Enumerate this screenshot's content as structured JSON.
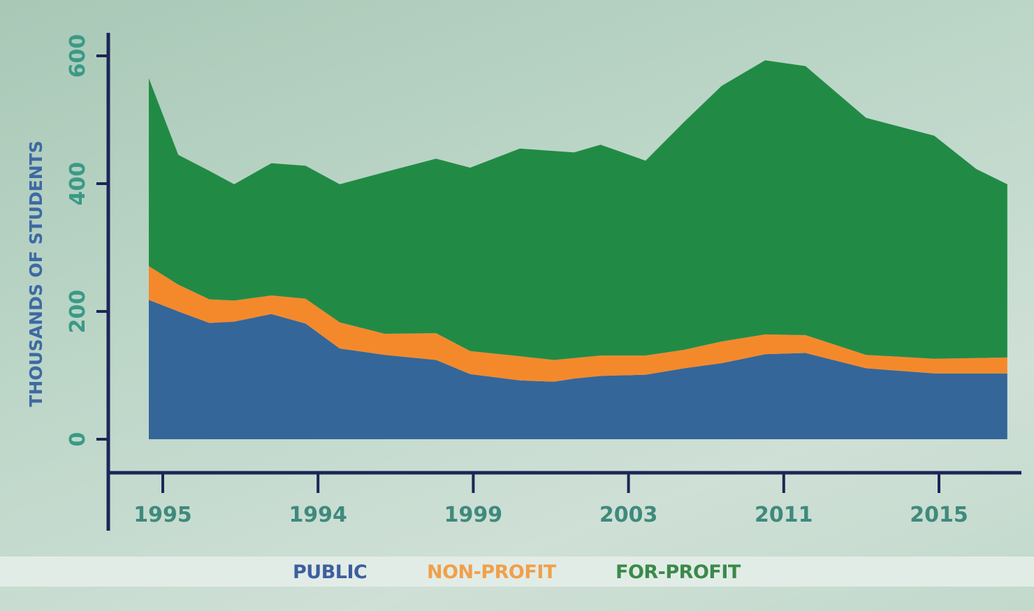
{
  "chart_data": {
    "type": "area",
    "stacked": true,
    "title": "",
    "xlabel": "",
    "ylabel": "THOUSANDS OF STUDENTS",
    "ylim": [
      0,
      600
    ],
    "yticks": [
      0,
      200,
      400,
      600
    ],
    "xtick_labels": [
      "1995",
      "1994",
      "1999",
      "2003",
      "2011",
      "2015"
    ],
    "xtick_positions": [
      0,
      1,
      2,
      3,
      4,
      5
    ],
    "x": [
      -0.09,
      0.1,
      0.3,
      0.46,
      0.7,
      0.92,
      1.14,
      1.43,
      1.76,
      1.98,
      2.3,
      2.52,
      2.65,
      2.82,
      3.11,
      3.36,
      3.6,
      3.88,
      4.14,
      4.53,
      4.97,
      5.24,
      5.44
    ],
    "grid": false,
    "legend_placement": "bottom",
    "series": [
      {
        "name": "PUBLIC",
        "color": "#356699",
        "values": [
          218,
          200,
          182,
          184,
          196,
          181,
          142,
          132,
          124,
          102,
          92,
          90,
          95,
          99,
          101,
          111,
          119,
          133,
          135,
          111,
          103,
          103,
          103
        ]
      },
      {
        "name": "NON-PROFIT",
        "color": "#f4892c",
        "values": [
          53,
          42,
          37,
          33,
          29,
          39,
          41,
          33,
          42,
          36,
          38,
          34,
          32,
          32,
          30,
          29,
          34,
          31,
          28,
          21,
          23,
          24,
          25
        ]
      },
      {
        "name": "FOR-PROFIT",
        "color": "#218b45",
        "values": [
          294,
          203,
          201,
          182,
          207,
          208,
          216,
          253,
          273,
          287,
          325,
          327,
          322,
          330,
          305,
          357,
          400,
          429,
          421,
          371,
          349,
          296,
          271
        ]
      }
    ]
  },
  "colors": {
    "axis": "#1c2657",
    "legend_public": "#3d5f9e",
    "legend_nonprofit": "#f0a04b",
    "legend_forprofit": "#3a8a4a"
  }
}
